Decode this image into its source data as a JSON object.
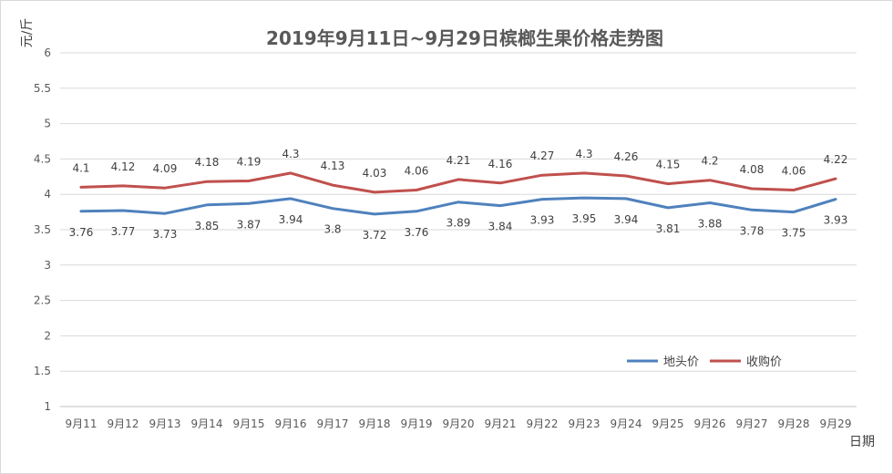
{
  "chart_data": {
    "type": "line",
    "title": "2019年9月11日~9月29日槟榔生果价格走势图",
    "xlabel": "日期",
    "ylabel": "元/斤",
    "categories": [
      "9月11",
      "9月12",
      "9月13",
      "9月14",
      "9月15",
      "9月16",
      "9月17",
      "9月18",
      "9月19",
      "9月20",
      "9月21",
      "9月22",
      "9月23",
      "9月24",
      "9月25",
      "9月26",
      "9月27",
      "9月28",
      "9月29"
    ],
    "ylim": [
      1,
      6
    ],
    "yticks": [
      "1",
      "1.5",
      "2",
      "2.5",
      "3",
      "3.5",
      "4",
      "4.5",
      "5",
      "5.5",
      "6"
    ],
    "grid": true,
    "legend_position": "bottom-right",
    "series": [
      {
        "name": "地头价",
        "color": "#4F81BD",
        "label_position": "below",
        "values": [
          3.76,
          3.77,
          3.73,
          3.85,
          3.87,
          3.94,
          3.8,
          3.72,
          3.76,
          3.89,
          3.84,
          3.93,
          3.95,
          3.94,
          3.81,
          3.88,
          3.78,
          3.75,
          3.93
        ]
      },
      {
        "name": "收购价",
        "color": "#C0504D",
        "label_position": "above",
        "values": [
          4.1,
          4.12,
          4.09,
          4.18,
          4.19,
          4.3,
          4.13,
          4.03,
          4.06,
          4.21,
          4.16,
          4.27,
          4.3,
          4.26,
          4.15,
          4.2,
          4.08,
          4.06,
          4.22
        ]
      }
    ]
  }
}
